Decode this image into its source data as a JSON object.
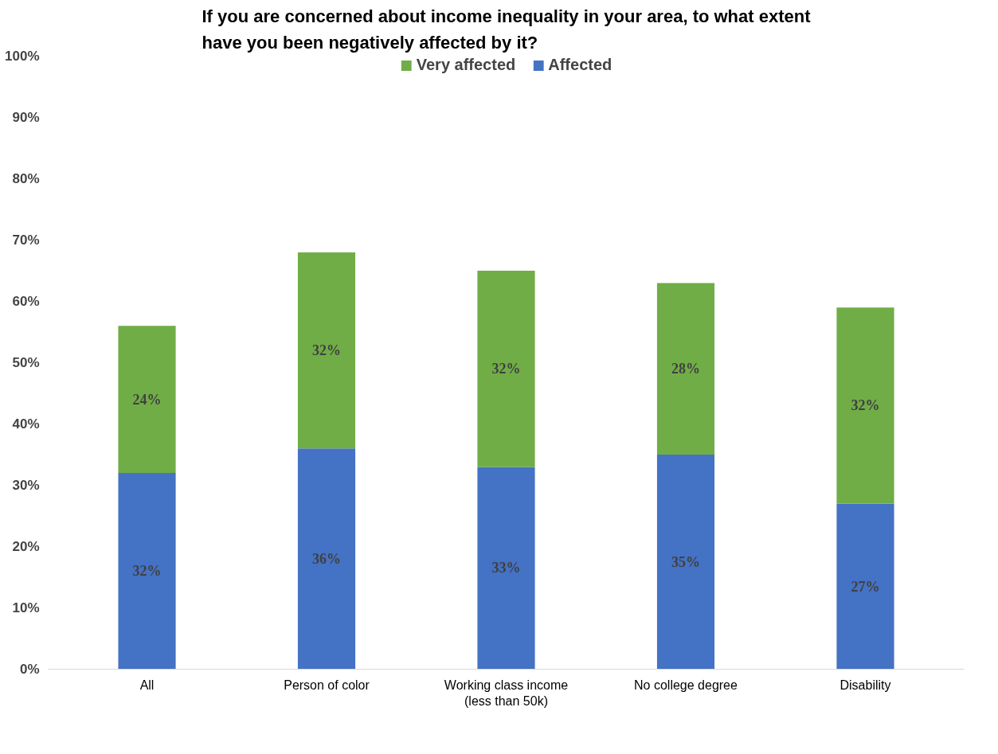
{
  "chart_data": {
    "type": "bar",
    "stacked": true,
    "title": "If you are concerned about income inequality in your area, to what extent\nhave you been negatively affected by it?",
    "categories": [
      "All",
      "Person of color",
      "Working class income\n(less than 50k)",
      "No college degree",
      "Disability"
    ],
    "series": [
      {
        "name": "Affected",
        "color": "#4472c4",
        "values": [
          32,
          36,
          33,
          35,
          27
        ],
        "value_labels": [
          "32%",
          "36%",
          "33%",
          "35%",
          "27%"
        ]
      },
      {
        "name": "Very affected",
        "color": "#70ad47",
        "values": [
          24,
          32,
          32,
          28,
          32
        ],
        "value_labels": [
          "24%",
          "32%",
          "32%",
          "28%",
          "32%"
        ]
      }
    ],
    "ylim": [
      0,
      100
    ],
    "yticks": [
      {
        "value": 0,
        "label": "0%"
      },
      {
        "value": 10,
        "label": "10%"
      },
      {
        "value": 20,
        "label": "20%"
      },
      {
        "value": 30,
        "label": "30%"
      },
      {
        "value": 40,
        "label": "40%"
      },
      {
        "value": 50,
        "label": "50%"
      },
      {
        "value": 60,
        "label": "60%"
      },
      {
        "value": 70,
        "label": "70%"
      },
      {
        "value": 80,
        "label": "80%"
      },
      {
        "value": 90,
        "label": "90%"
      },
      {
        "value": 100,
        "label": "100%"
      }
    ],
    "grid": false,
    "legend": "top"
  }
}
